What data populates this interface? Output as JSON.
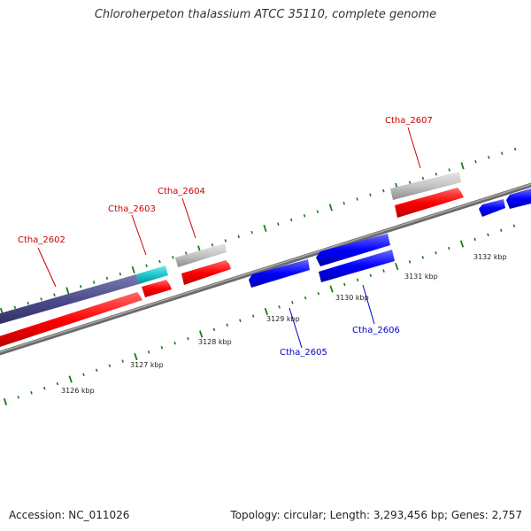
{
  "title": "Chloroherpeton thalassium ATCC 35110, complete genome",
  "footer": {
    "accession": "Accession: NC_011026",
    "summary": "Topology: circular; Length: 3,293,456 bp; Genes: 2,757"
  },
  "scale": {
    "unit": "kbp",
    "labels": [
      "3126 kbp",
      "3127 kbp",
      "3128 kbp",
      "3129 kbp",
      "3130 kbp",
      "3131 kbp",
      "3132 kbp"
    ]
  },
  "gene_labels": [
    {
      "name": "Ctha_2602",
      "strand": "forward"
    },
    {
      "name": "Ctha_2603",
      "strand": "forward"
    },
    {
      "name": "Ctha_2604",
      "strand": "forward"
    },
    {
      "name": "Ctha_2605",
      "strand": "reverse"
    },
    {
      "name": "Ctha_2606",
      "strand": "reverse"
    },
    {
      "name": "Ctha_2607",
      "strand": "forward"
    }
  ],
  "colors": {
    "forward_cds": "#ff0000",
    "reverse_cds": "#0000ff",
    "gray_feature": "#c0c0c0",
    "purple_feature": "#4b4b8c",
    "cyan_feature": "#1cc8d0",
    "backbone": "#808080",
    "tick": "#1a7a1a",
    "forward_label": "#cc0000",
    "reverse_label": "#0000cc"
  }
}
